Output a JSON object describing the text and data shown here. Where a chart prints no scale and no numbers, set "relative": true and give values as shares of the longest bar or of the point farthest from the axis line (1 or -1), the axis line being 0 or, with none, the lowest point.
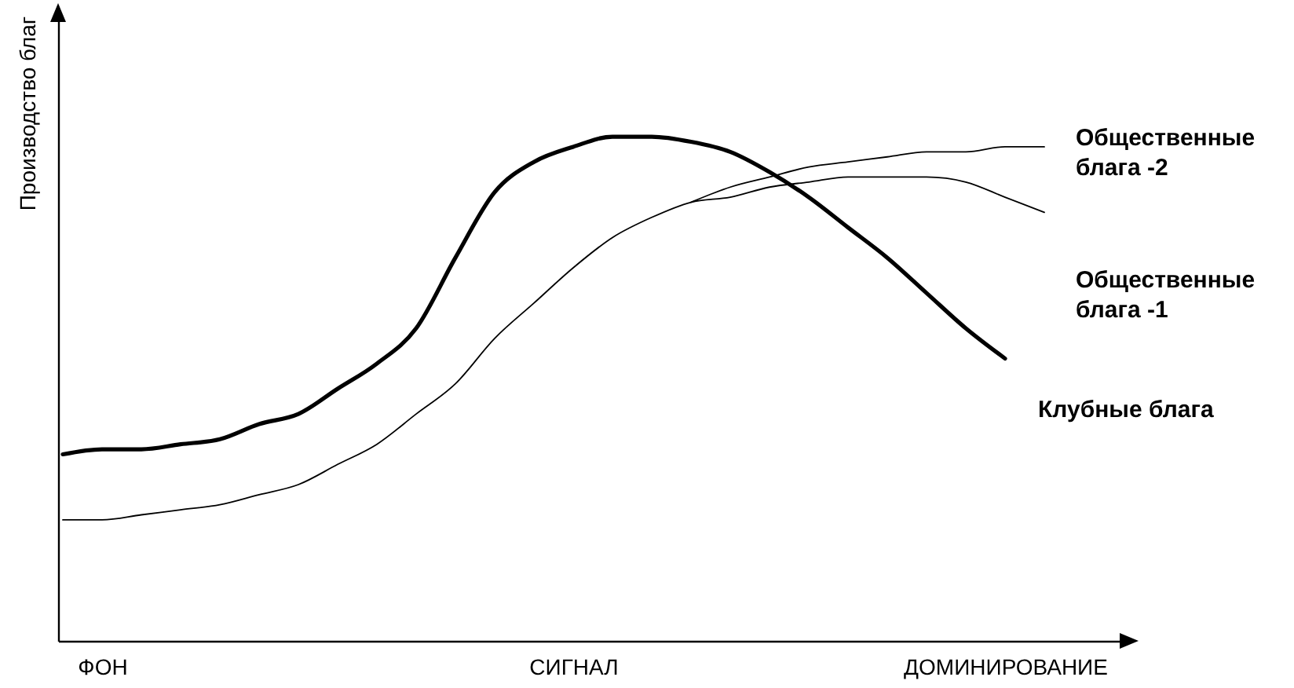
{
  "chart_data": {
    "type": "line",
    "ylabel": "Производство благ",
    "relative": true,
    "legend": false,
    "grid": false,
    "categories": [
      null,
      "ФОН",
      null,
      null,
      null,
      null,
      null,
      null,
      null,
      null,
      null,
      null,
      null,
      "СИГНАЛ",
      null,
      null,
      null,
      null,
      null,
      null,
      null,
      null,
      null,
      null,
      "ДОМИНИРОВАНИЕ",
      null,
      null,
      null
    ],
    "series": [
      {
        "name": "Клубные блага",
        "color": "#000000",
        "values": [
          0.37,
          0.38,
          0.38,
          0.39,
          0.4,
          0.43,
          0.45,
          0.5,
          0.55,
          0.62,
          0.76,
          0.89,
          0.95,
          0.98,
          1.0,
          1.0,
          0.99,
          0.97,
          0.93,
          0.88,
          0.82,
          0.76,
          0.69,
          0.62,
          0.56,
          null,
          null,
          null
        ]
      },
      {
        "name": "Общественные блага -1",
        "color": "#000000",
        "values": [
          0.24,
          0.24,
          0.25,
          0.26,
          0.27,
          0.29,
          0.31,
          0.35,
          0.39,
          0.45,
          0.51,
          0.6,
          0.67,
          0.74,
          0.8,
          0.84,
          0.87,
          0.88,
          0.9,
          0.91,
          0.92,
          0.92,
          0.92,
          0.91,
          0.88,
          0.85,
          null,
          null
        ]
      },
      {
        "name": "Общественные блага -2",
        "color": "#000000",
        "values": [
          null,
          null,
          null,
          null,
          null,
          null,
          null,
          null,
          null,
          null,
          null,
          null,
          null,
          null,
          null,
          null,
          0.87,
          0.9,
          0.92,
          0.94,
          0.95,
          0.96,
          0.97,
          0.97,
          0.98,
          0.98,
          null,
          null
        ]
      }
    ]
  }
}
